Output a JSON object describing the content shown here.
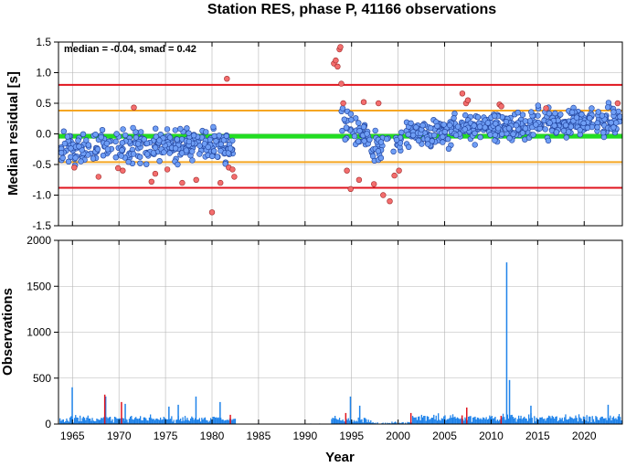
{
  "chart_data": {
    "title": "Station RES, phase P, 41166 observations",
    "xlabel": "Year",
    "xlim": [
      1963.5,
      2024.1
    ],
    "xticks": [
      1965,
      1970,
      1975,
      1980,
      1985,
      1990,
      1995,
      2000,
      2005,
      2010,
      2015,
      2020
    ],
    "grid": true,
    "panels": [
      {
        "type": "scatter",
        "ylabel": "Median residual [s]",
        "ylim": [
          -1.5,
          1.5
        ],
        "yticks": [
          "-1.5",
          "-1.0",
          "-0.5",
          "0.0",
          "0.5",
          "1.0",
          "1.5"
        ],
        "annotation": "median = -0.04, smad = 0.42",
        "reference_lines": [
          {
            "name": "median",
            "value": -0.04,
            "color": "#22dd22"
          },
          {
            "name": "upper-1",
            "value": 0.38,
            "color": "#f5a623"
          },
          {
            "name": "lower-1",
            "value": -0.46,
            "color": "#f5a623"
          },
          {
            "name": "upper-2",
            "value": 0.8,
            "color": "#e0141e"
          },
          {
            "name": "lower-2",
            "value": -0.88,
            "color": "#e0141e"
          }
        ],
        "colors": {
          "inlier": "#6f9ef5",
          "outlier": "#f36d6d"
        },
        "outliers": [
          [
            1965.2,
            -0.55
          ],
          [
            1967.8,
            -0.7
          ],
          [
            1969.9,
            -0.56
          ],
          [
            1970.4,
            -0.6
          ],
          [
            1971.6,
            0.43
          ],
          [
            1973.5,
            -0.78
          ],
          [
            1973.9,
            -0.65
          ],
          [
            1975.2,
            -0.58
          ],
          [
            1976.8,
            -0.8
          ],
          [
            1978.3,
            -0.75
          ],
          [
            1980.0,
            -1.28
          ],
          [
            1980.9,
            -0.8
          ],
          [
            1981.6,
            0.9
          ],
          [
            1981.8,
            -0.55
          ],
          [
            1982.2,
            -0.58
          ],
          [
            1982.4,
            -0.7
          ],
          [
            1993.1,
            1.15
          ],
          [
            1993.3,
            1.2
          ],
          [
            1993.5,
            1.1
          ],
          [
            1993.7,
            1.38
          ],
          [
            1993.8,
            1.42
          ],
          [
            1993.9,
            0.82
          ],
          [
            1994.1,
            0.5
          ],
          [
            1994.5,
            -0.6
          ],
          [
            1994.9,
            -0.9
          ],
          [
            1995.8,
            -0.75
          ],
          [
            1996.3,
            0.52
          ],
          [
            1997.4,
            -0.82
          ],
          [
            1997.9,
            0.5
          ],
          [
            1998.4,
            -1.0
          ],
          [
            1999.1,
            -1.1
          ],
          [
            1999.6,
            -0.68
          ],
          [
            2000.1,
            -0.6
          ],
          [
            2006.9,
            0.66
          ],
          [
            2007.3,
            0.5
          ],
          [
            2007.5,
            0.55
          ],
          [
            2010.9,
            0.48
          ],
          [
            2011.1,
            0.45
          ],
          [
            2015.9,
            0.42
          ],
          [
            2023.6,
            0.5
          ]
        ],
        "segments": [
          {
            "start": 1963.8,
            "end": 1982.3,
            "count": 300,
            "mean": -0.2,
            "spread": 0.36,
            "trend": 0.0
          },
          {
            "start": 1993.9,
            "end": 1997.0,
            "count": 45,
            "mean": 0.15,
            "spread": 0.34,
            "trend": -0.2
          },
          {
            "start": 1997.0,
            "end": 2001.0,
            "count": 40,
            "mean": -0.25,
            "spread": 0.32,
            "trend": 0.2
          },
          {
            "start": 2001.0,
            "end": 2024.0,
            "count": 420,
            "mean": 0.0,
            "spread": 0.34,
            "trend": 0.25
          }
        ]
      },
      {
        "type": "bar",
        "ylabel": "Observations",
        "ylim": [
          0,
          2000
        ],
        "yticks": [
          "0",
          "500",
          "1000",
          "1500",
          "2000"
        ],
        "colors": {
          "inlier": "#1f83ea",
          "outlier": "#e0141e"
        },
        "segments": [
          {
            "start": 1963.6,
            "end": 1982.5,
            "base": 55,
            "var": 55
          },
          {
            "start": 1982.5,
            "end": 1992.8,
            "base": 3,
            "var": 4
          },
          {
            "start": 1992.8,
            "end": 1997.0,
            "base": 45,
            "var": 55
          },
          {
            "start": 1997.0,
            "end": 2001.5,
            "base": 14,
            "var": 18
          },
          {
            "start": 2001.5,
            "end": 2024.0,
            "base": 65,
            "var": 60
          }
        ],
        "spikes": [
          [
            1964.9,
            400
          ],
          [
            1968.5,
            300
          ],
          [
            1970.6,
            220
          ],
          [
            1975.3,
            190
          ],
          [
            1976.3,
            210
          ],
          [
            1978.2,
            300
          ],
          [
            1980.8,
            240
          ],
          [
            1994.8,
            300
          ],
          [
            1995.8,
            200
          ],
          [
            2011.6,
            1760
          ],
          [
            2011.9,
            480
          ],
          [
            2014.2,
            200
          ],
          [
            2022.5,
            210
          ]
        ],
        "outlier_spikes": [
          [
            1968.4,
            320
          ],
          [
            1970.2,
            240
          ],
          [
            1981.9,
            100
          ],
          [
            1994.3,
            120
          ],
          [
            2001.3,
            120
          ],
          [
            2006.8,
            95
          ],
          [
            2007.3,
            180
          ],
          [
            2011.0,
            90
          ]
        ]
      }
    ]
  }
}
